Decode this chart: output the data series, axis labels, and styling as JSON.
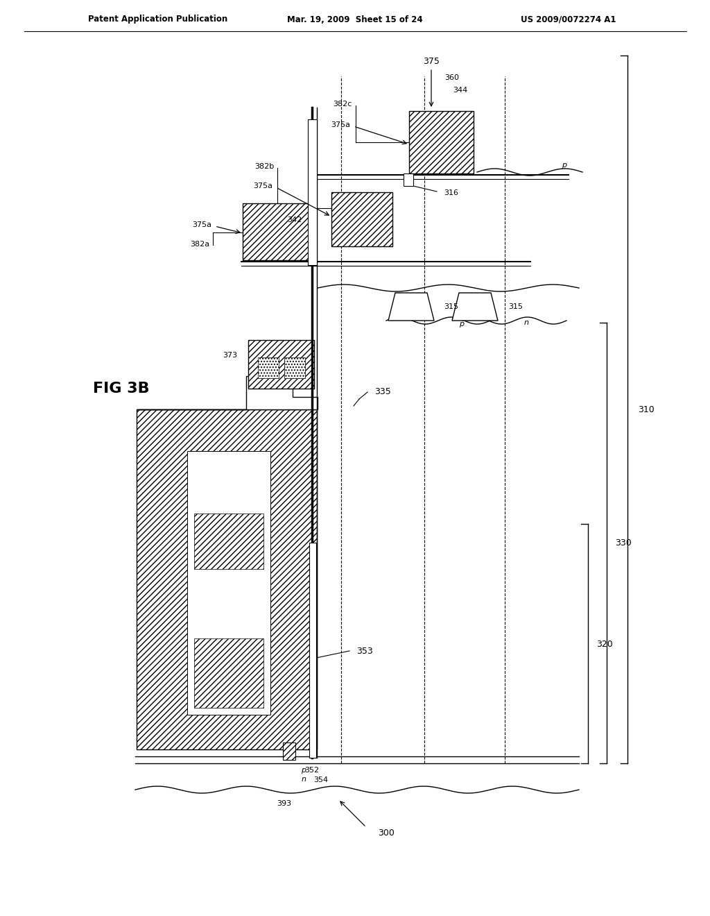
{
  "bg": "#ffffff",
  "header_left": "Patent Application Publication",
  "header_mid": "Mar. 19, 2009  Sheet 15 of 24",
  "header_right": "US 2009/0072274 A1",
  "fig_label": "FIG 3B"
}
